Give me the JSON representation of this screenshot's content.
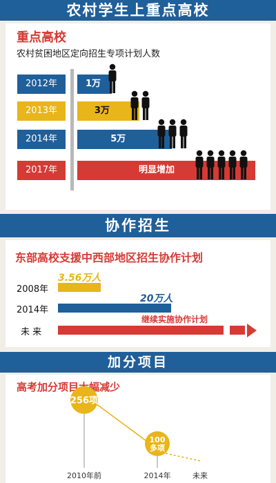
{
  "banner1": "农村学生上重点高校",
  "section1": {
    "title": "重点高校",
    "subtitle": "农村贫困地区定向招生专项计划人数",
    "rows": [
      {
        "year": "2012年",
        "label": "1万",
        "year_color": "#1f5f9a",
        "bar_color": "#1f5f9a",
        "label_color": "#ffffff",
        "people": 1
      },
      {
        "year": "2013年",
        "label": "3万",
        "year_color": "#e8b51a",
        "bar_color": "#e8b51a",
        "label_color": "#111111",
        "people": 2
      },
      {
        "year": "2014年",
        "label": "5万",
        "year_color": "#1f5f9a",
        "bar_color": "#1f5f9a",
        "label_color": "#ffffff",
        "people": 3
      },
      {
        "year": "2017年",
        "label": "明显增加",
        "year_color": "#d63a35",
        "bar_color": "#d63a35",
        "label_color": "#ffffff",
        "people": 5
      }
    ]
  },
  "banner2": "协作招生",
  "section2": {
    "title": "东部高校支援中西部地区招生协作计划",
    "rows": [
      {
        "year": "2008年",
        "label": "3.56万人",
        "bar_color": "#e8b51a",
        "label_color": "#e8b51a"
      },
      {
        "year": "2014年",
        "label": "20万人",
        "bar_color": "#1f5f9a",
        "label_color": "#1f5f9a"
      },
      {
        "year": "未  来",
        "label": "继续实施协作计划",
        "bar_color": "#d63a35",
        "label_color": "#d63a35"
      }
    ]
  },
  "banner3": "加分项目",
  "section3": {
    "title": "高考加分项目大幅减少",
    "points": [
      {
        "x": "2010年前",
        "label": "256项"
      },
      {
        "x": "2014年",
        "label": "100多项"
      },
      {
        "x": "未来",
        "label": ""
      }
    ]
  },
  "chart_data": [
    {
      "type": "bar",
      "title": "重点高校",
      "subtitle": "农村贫困地区定向招生专项计划人数",
      "categories": [
        "2012年",
        "2013年",
        "2014年",
        "2017年"
      ],
      "values": [
        1,
        3,
        5,
        null
      ],
      "data_labels": [
        "1万",
        "3万",
        "5万",
        "明显增加"
      ]
    },
    {
      "type": "bar",
      "title": "东部高校支援中西部地区招生协作计划",
      "categories": [
        "2008年",
        "2014年",
        "未  来"
      ],
      "values": [
        3.56,
        20,
        null
      ],
      "data_labels": [
        "3.56万人",
        "20万人",
        "继续实施协作计划"
      ]
    },
    {
      "type": "line",
      "title": "高考加分项目大幅减少",
      "categories": [
        "2010年前",
        "2014年",
        "未来"
      ],
      "values": [
        256,
        100,
        null
      ],
      "data_labels": [
        "256项",
        "100多项",
        ""
      ]
    }
  ]
}
